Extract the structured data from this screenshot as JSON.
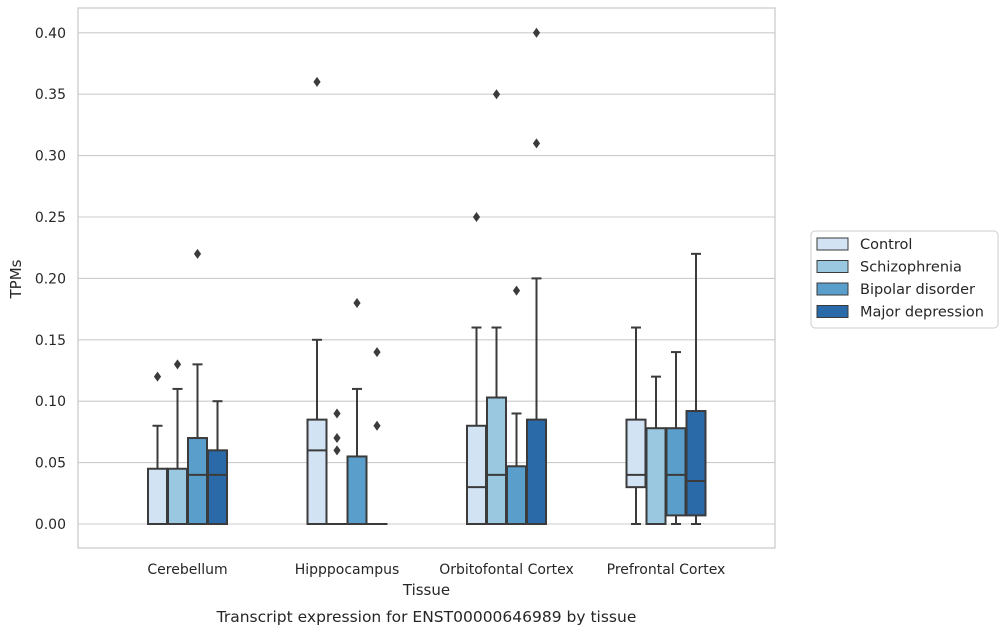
{
  "chart_data": {
    "type": "boxplot",
    "title": "",
    "caption": "Transcript expression for ENST00000646989 by tissue",
    "xlabel": "Tissue",
    "ylabel": "TPMs",
    "ylim": [
      -0.019,
      0.42
    ],
    "yticks": [
      0.0,
      0.05,
      0.1,
      0.15,
      0.2,
      0.25,
      0.3,
      0.35,
      0.4
    ],
    "ytick_labels": [
      "0.00",
      "0.05",
      "0.10",
      "0.15",
      "0.20",
      "0.25",
      "0.30",
      "0.35",
      "0.40"
    ],
    "grid": "horizontal",
    "legend_placement": "right",
    "categories": [
      "Cerebellum",
      "Hipppocampus",
      "Orbitofontal Cortex",
      "Prefrontal Cortex"
    ],
    "series": [
      {
        "name": "Control",
        "color": "#d2e3f3",
        "boxes": [
          {
            "q1": 0.0,
            "median": 0.0,
            "q3": 0.045,
            "whisker_low": 0.0,
            "whisker_high": 0.08,
            "outliers": [
              0.12
            ]
          },
          {
            "q1": 0.0,
            "median": 0.06,
            "q3": 0.085,
            "whisker_low": 0.0,
            "whisker_high": 0.15,
            "outliers": [
              0.36
            ]
          },
          {
            "q1": 0.0,
            "median": 0.03,
            "q3": 0.08,
            "whisker_low": 0.0,
            "whisker_high": 0.16,
            "outliers": [
              0.25
            ]
          },
          {
            "q1": 0.03,
            "median": 0.04,
            "q3": 0.085,
            "whisker_low": 0.0,
            "whisker_high": 0.16,
            "outliers": []
          }
        ]
      },
      {
        "name": "Schizophrenia",
        "color": "#9ac8e0",
        "boxes": [
          {
            "q1": 0.0,
            "median": 0.0,
            "q3": 0.045,
            "whisker_low": 0.0,
            "whisker_high": 0.11,
            "outliers": [
              0.13
            ]
          },
          {
            "q1": 0.0,
            "median": 0.0,
            "q3": 0.0,
            "whisker_low": 0.0,
            "whisker_high": 0.0,
            "outliers": [
              0.09,
              0.07,
              0.06
            ]
          },
          {
            "q1": 0.0,
            "median": 0.04,
            "q3": 0.103,
            "whisker_low": 0.0,
            "whisker_high": 0.16,
            "outliers": [
              0.35
            ]
          },
          {
            "q1": 0.0,
            "median": 0.0,
            "q3": 0.078,
            "whisker_low": 0.0,
            "whisker_high": 0.12,
            "outliers": []
          }
        ]
      },
      {
        "name": "Bipolar disorder",
        "color": "#5a9ecb",
        "boxes": [
          {
            "q1": 0.0,
            "median": 0.04,
            "q3": 0.07,
            "whisker_low": 0.0,
            "whisker_high": 0.13,
            "outliers": [
              0.22
            ]
          },
          {
            "q1": 0.0,
            "median": 0.0,
            "q3": 0.055,
            "whisker_low": 0.0,
            "whisker_high": 0.11,
            "outliers": [
              0.18
            ]
          },
          {
            "q1": 0.0,
            "median": 0.0,
            "q3": 0.047,
            "whisker_low": 0.0,
            "whisker_high": 0.09,
            "outliers": [
              0.19
            ]
          },
          {
            "q1": 0.007,
            "median": 0.04,
            "q3": 0.078,
            "whisker_low": 0.0,
            "whisker_high": 0.14,
            "outliers": []
          }
        ]
      },
      {
        "name": "Major depression",
        "color": "#2b6aa9",
        "boxes": [
          {
            "q1": 0.0,
            "median": 0.04,
            "q3": 0.06,
            "whisker_low": 0.0,
            "whisker_high": 0.1,
            "outliers": []
          },
          {
            "q1": 0.0,
            "median": 0.0,
            "q3": 0.0,
            "whisker_low": 0.0,
            "whisker_high": 0.0,
            "outliers": [
              0.14,
              0.08
            ]
          },
          {
            "q1": 0.0,
            "median": 0.0,
            "q3": 0.085,
            "whisker_low": 0.0,
            "whisker_high": 0.2,
            "outliers": [
              0.4,
              0.31
            ]
          },
          {
            "q1": 0.007,
            "median": 0.035,
            "q3": 0.092,
            "whisker_low": 0.0,
            "whisker_high": 0.22,
            "outliers": []
          }
        ]
      }
    ]
  }
}
